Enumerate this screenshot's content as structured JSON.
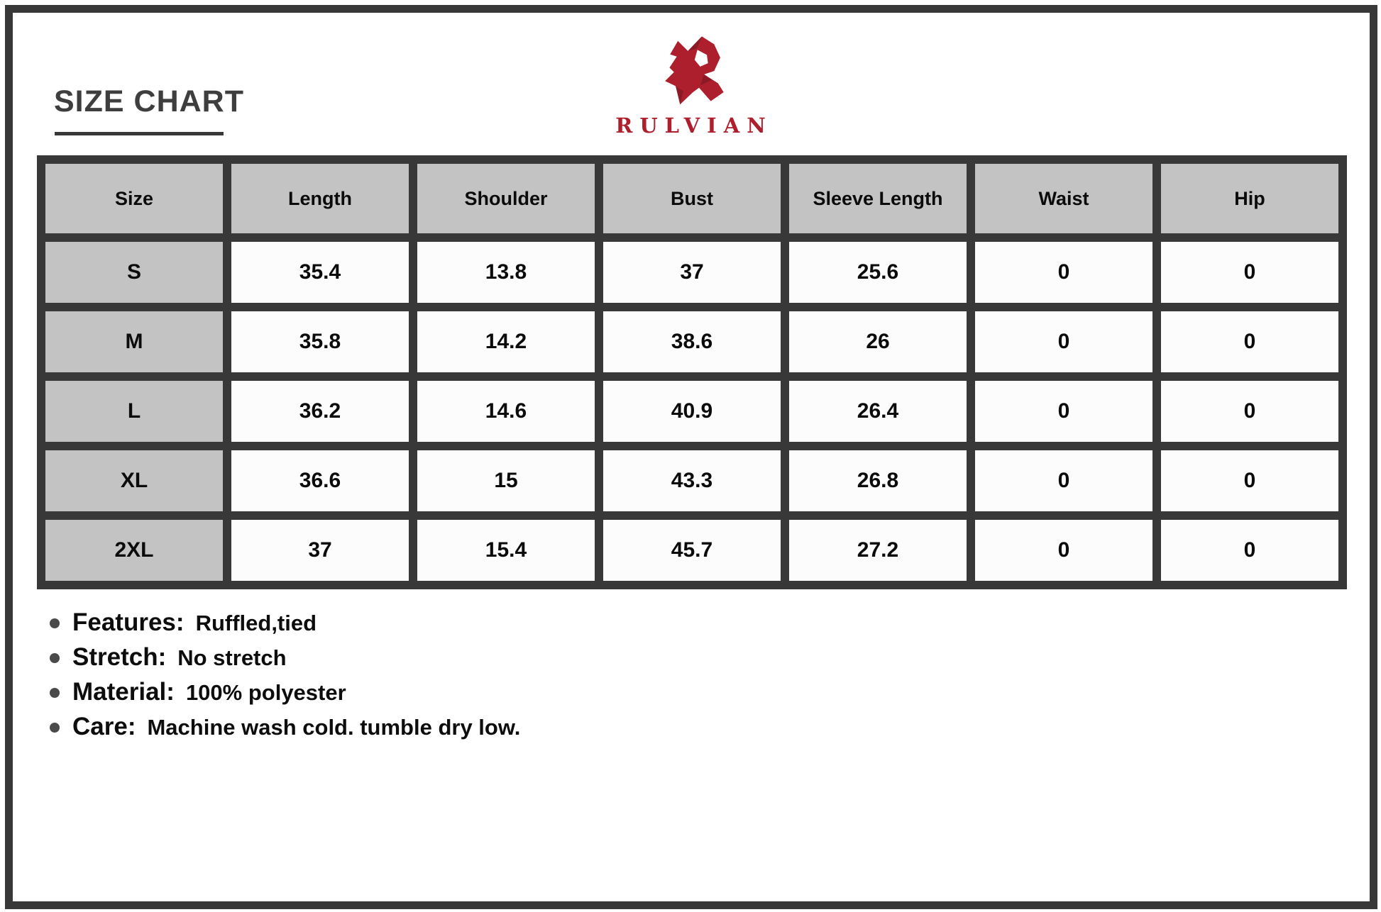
{
  "header": {
    "title": "SIZE CHART",
    "brand": "RULVIAN"
  },
  "table": {
    "columns": [
      "Size",
      "Length",
      "Shoulder",
      "Bust",
      "Sleeve Length",
      "Waist",
      "Hip"
    ],
    "rows": [
      {
        "size": "S",
        "values": [
          "35.4",
          "13.8",
          "37",
          "25.6",
          "0",
          "0"
        ]
      },
      {
        "size": "M",
        "values": [
          "35.8",
          "14.2",
          "38.6",
          "26",
          "0",
          "0"
        ]
      },
      {
        "size": "L",
        "values": [
          "36.2",
          "14.6",
          "40.9",
          "26.4",
          "0",
          "0"
        ]
      },
      {
        "size": "XL",
        "values": [
          "36.6",
          "15",
          "43.3",
          "26.8",
          "0",
          "0"
        ]
      },
      {
        "size": "2XL",
        "values": [
          "37",
          "15.4",
          "45.7",
          "27.2",
          "0",
          "0"
        ]
      }
    ]
  },
  "details": [
    {
      "label": "Features:",
      "value": "Ruffled,tied"
    },
    {
      "label": "Stretch:",
      "value": "No stretch"
    },
    {
      "label": "Material:",
      "value": "100% polyester"
    },
    {
      "label": "Care:",
      "value": "Machine wash cold. tumble dry low."
    }
  ],
  "icons": {
    "logo": "rulvian-r-logo"
  },
  "colors": {
    "accent_red": "#ae1f2d",
    "accent_red_dark": "#8c1a26",
    "border_dark": "#383838",
    "header_gray": "#c3c3c3",
    "bullet_gray": "#4a4a4a"
  }
}
